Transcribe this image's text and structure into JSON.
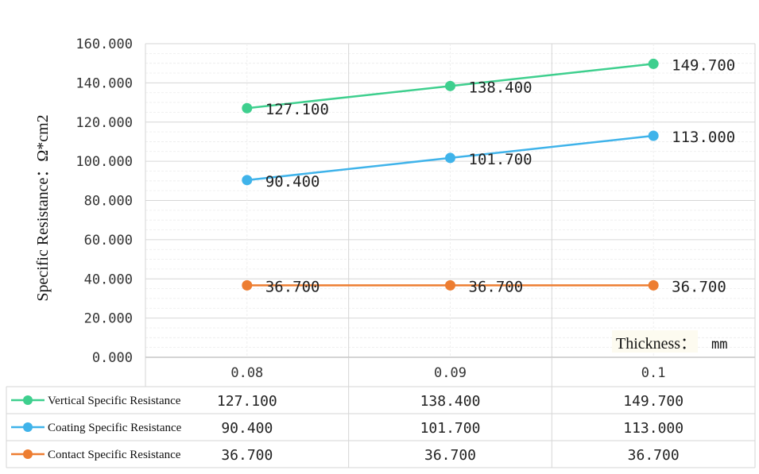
{
  "chart_data": {
    "type": "line",
    "ylabel": "Specific Resistance：Ω*cm2",
    "xlabel": "Thickness：",
    "xlabel_unit": "mm",
    "categories": [
      "0.08",
      "0.09",
      "0.1"
    ],
    "ylim": [
      0,
      160
    ],
    "y_ticks": [
      "0.000",
      "20.000",
      "40.000",
      "60.000",
      "80.000",
      "100.000",
      "120.000",
      "140.000",
      "160.000"
    ],
    "grid": true,
    "data_table": true,
    "series": [
      {
        "name": "Vertical Specific Resistance",
        "color": "#3ecf8e",
        "values": [
          127.1,
          138.4,
          149.7
        ],
        "labels": [
          "127.100",
          "138.400",
          "149.700"
        ]
      },
      {
        "name": "Coating Specific Resistance",
        "color": "#3fb3ea",
        "values": [
          90.4,
          101.7,
          113.0
        ],
        "labels": [
          "90.400",
          "101.700",
          "113.000"
        ]
      },
      {
        "name": "Contact Specific Resistance",
        "color": "#ed7d31",
        "values": [
          36.7,
          36.7,
          36.7
        ],
        "labels": [
          "36.700",
          "36.700",
          "36.700"
        ]
      }
    ]
  }
}
